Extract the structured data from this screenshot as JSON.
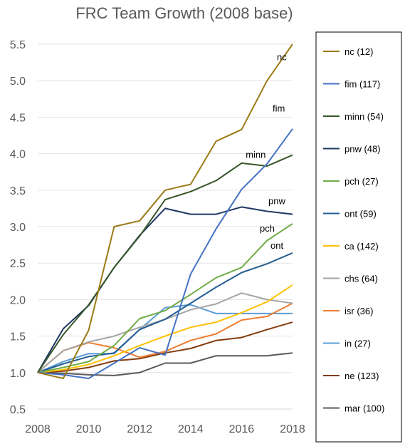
{
  "chart_data": {
    "type": "line",
    "title": "FRC Team Growth (2008 base)",
    "xlabel": "",
    "ylabel": "",
    "x": [
      2008,
      2009,
      2010,
      2011,
      2012,
      2013,
      2014,
      2015,
      2016,
      2017,
      2018
    ],
    "xlim": [
      2008,
      2018
    ],
    "xticks": [
      2008,
      2010,
      2012,
      2014,
      2016,
      2018
    ],
    "ylim": [
      0.5,
      5.5
    ],
    "yticks": [
      "0.5",
      "1.0",
      "1.5",
      "2.0",
      "2.5",
      "3.0",
      "3.5",
      "4.0",
      "4.5",
      "5.0",
      "5.5"
    ],
    "grid": "horizontal",
    "legend_position": "right",
    "series": [
      {
        "name": "nc (12)",
        "label": "nc",
        "color": "#9c7a16",
        "values": [
          1.0,
          0.92,
          1.58,
          3.0,
          3.08,
          3.5,
          3.58,
          4.17,
          4.33,
          5.0,
          5.5
        ]
      },
      {
        "name": "fim (117)",
        "label": "fim",
        "color": "#4472c4",
        "values": [
          1.0,
          0.97,
          0.92,
          1.13,
          1.34,
          1.24,
          2.35,
          2.97,
          3.51,
          3.86,
          4.34
        ]
      },
      {
        "name": "minn (54)",
        "label": "minn",
        "color": "#38572a",
        "values": [
          1.0,
          1.52,
          1.93,
          2.44,
          2.87,
          3.37,
          3.48,
          3.63,
          3.87,
          3.83,
          3.98
        ]
      },
      {
        "name": "pnw (48)",
        "label": "pnw",
        "color": "#1f3864",
        "values": [
          1.0,
          1.6,
          1.92,
          2.44,
          2.88,
          3.25,
          3.17,
          3.17,
          3.27,
          3.21,
          3.17
        ]
      },
      {
        "name": "pch (27)",
        "label": "pch",
        "color": "#70ad47",
        "values": [
          1.0,
          1.07,
          1.15,
          1.37,
          1.74,
          1.85,
          2.07,
          2.3,
          2.44,
          2.81,
          3.04
        ]
      },
      {
        "name": "ont (59)",
        "label": "ont",
        "color": "#255e91",
        "values": [
          1.0,
          1.12,
          1.22,
          1.27,
          1.59,
          1.73,
          1.95,
          2.17,
          2.37,
          2.49,
          2.64
        ]
      },
      {
        "name": "ca (142)",
        "label": "",
        "color": "#ffc000",
        "values": [
          1.0,
          1.04,
          1.11,
          1.23,
          1.37,
          1.5,
          1.62,
          1.69,
          1.82,
          1.97,
          2.2
        ]
      },
      {
        "name": "chs (64)",
        "label": "",
        "color": "#a5a5a5",
        "values": [
          1.0,
          1.3,
          1.42,
          1.5,
          1.62,
          1.73,
          1.86,
          1.94,
          2.09,
          2.0,
          1.95
        ]
      },
      {
        "name": "isr (36)",
        "label": "",
        "color": "#ed7d31",
        "values": [
          1.0,
          1.3,
          1.41,
          1.34,
          1.21,
          1.29,
          1.44,
          1.53,
          1.72,
          1.77,
          1.95
        ]
      },
      {
        "name": "in (27)",
        "label": "",
        "color": "#5b9bd5",
        "values": [
          1.0,
          1.15,
          1.26,
          1.26,
          1.59,
          1.89,
          1.93,
          1.81,
          1.81,
          1.81,
          1.81
        ]
      },
      {
        "name": "ne (123)",
        "label": "",
        "color": "#843c0c",
        "values": [
          1.0,
          1.02,
          1.07,
          1.16,
          1.19,
          1.27,
          1.33,
          1.44,
          1.48,
          1.59,
          1.69
        ]
      },
      {
        "name": "mar (100)",
        "label": "",
        "color": "#595959",
        "values": [
          1.0,
          0.99,
          0.97,
          0.96,
          1.0,
          1.13,
          1.13,
          1.23,
          1.23,
          1.23,
          1.27
        ]
      }
    ]
  }
}
